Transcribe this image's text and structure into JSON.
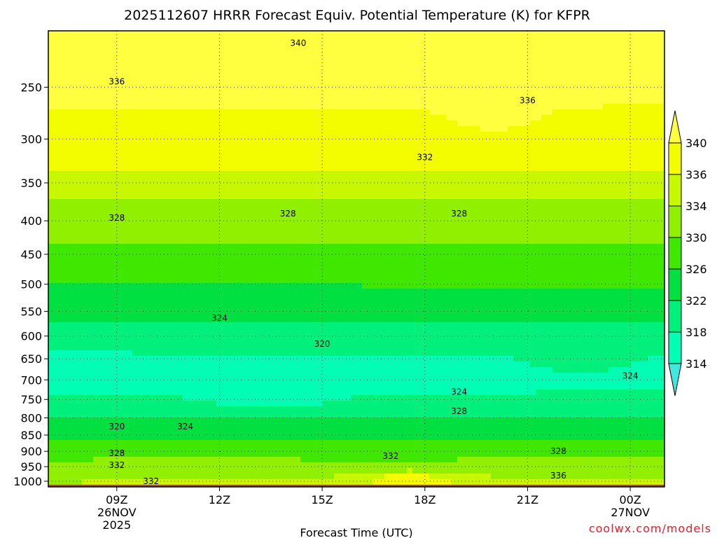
{
  "chart_data": {
    "type": "contour",
    "title": "2025112607 HRRR Forecast Equiv. Potential Temperature (K) for KFPR",
    "xlabel": "Forecast Time (UTC)",
    "credit": "coolwx.com/models",
    "x_ticks": [
      {
        "label": "09Z",
        "date": "26NOV",
        "year": "2025",
        "hour": 9
      },
      {
        "label": "12Z",
        "date": "",
        "year": "",
        "hour": 12
      },
      {
        "label": "15Z",
        "date": "",
        "year": "",
        "hour": 15
      },
      {
        "label": "18Z",
        "date": "",
        "year": "",
        "hour": 18
      },
      {
        "label": "21Z",
        "date": "",
        "year": "",
        "hour": 21
      },
      {
        "label": "00Z",
        "date": "27NOV",
        "year": "",
        "hour": 24
      }
    ],
    "xlim": [
      7,
      25
    ],
    "y_ticks": [
      250,
      300,
      350,
      400,
      450,
      500,
      550,
      600,
      650,
      700,
      750,
      800,
      850,
      900,
      950,
      1000
    ],
    "ylim": [
      1020,
      205
    ],
    "yscale": "log",
    "colorbar": {
      "levels": [
        314,
        318,
        322,
        326,
        330,
        334,
        336,
        340
      ],
      "extend": "both",
      "colors": [
        "#40e8e0",
        "#00ffb4",
        "#00f07c",
        "#00e040",
        "#40e800",
        "#90f000",
        "#c8f800",
        "#f4fc00",
        "#ffff40"
      ]
    },
    "contour_labels": [
      {
        "text": "340",
        "hour": 14.3,
        "p": 214
      },
      {
        "text": "336",
        "hour": 9.0,
        "p": 245
      },
      {
        "text": "336",
        "hour": 21.0,
        "p": 262
      },
      {
        "text": "332",
        "hour": 18.0,
        "p": 320
      },
      {
        "text": "328",
        "hour": 9.0,
        "p": 396
      },
      {
        "text": "328",
        "hour": 14.0,
        "p": 390
      },
      {
        "text": "328",
        "hour": 19.0,
        "p": 390
      },
      {
        "text": "324",
        "hour": 12.0,
        "p": 563
      },
      {
        "text": "320",
        "hour": 15.0,
        "p": 617
      },
      {
        "text": "324",
        "hour": 24.0,
        "p": 690
      },
      {
        "text": "324",
        "hour": 19.0,
        "p": 730
      },
      {
        "text": "328",
        "hour": 19.0,
        "p": 782
      },
      {
        "text": "320",
        "hour": 9.0,
        "p": 825
      },
      {
        "text": "324",
        "hour": 11.0,
        "p": 825
      },
      {
        "text": "328",
        "hour": 9.0,
        "p": 906
      },
      {
        "text": "328",
        "hour": 21.9,
        "p": 900
      },
      {
        "text": "332",
        "hour": 9.0,
        "p": 945
      },
      {
        "text": "332",
        "hour": 17.0,
        "p": 915
      },
      {
        "text": "336",
        "hour": 21.9,
        "p": 980
      },
      {
        "text": "332",
        "hour": 10.0,
        "p": 1000
      }
    ],
    "grid": true,
    "surface_color": "#a0522d"
  }
}
